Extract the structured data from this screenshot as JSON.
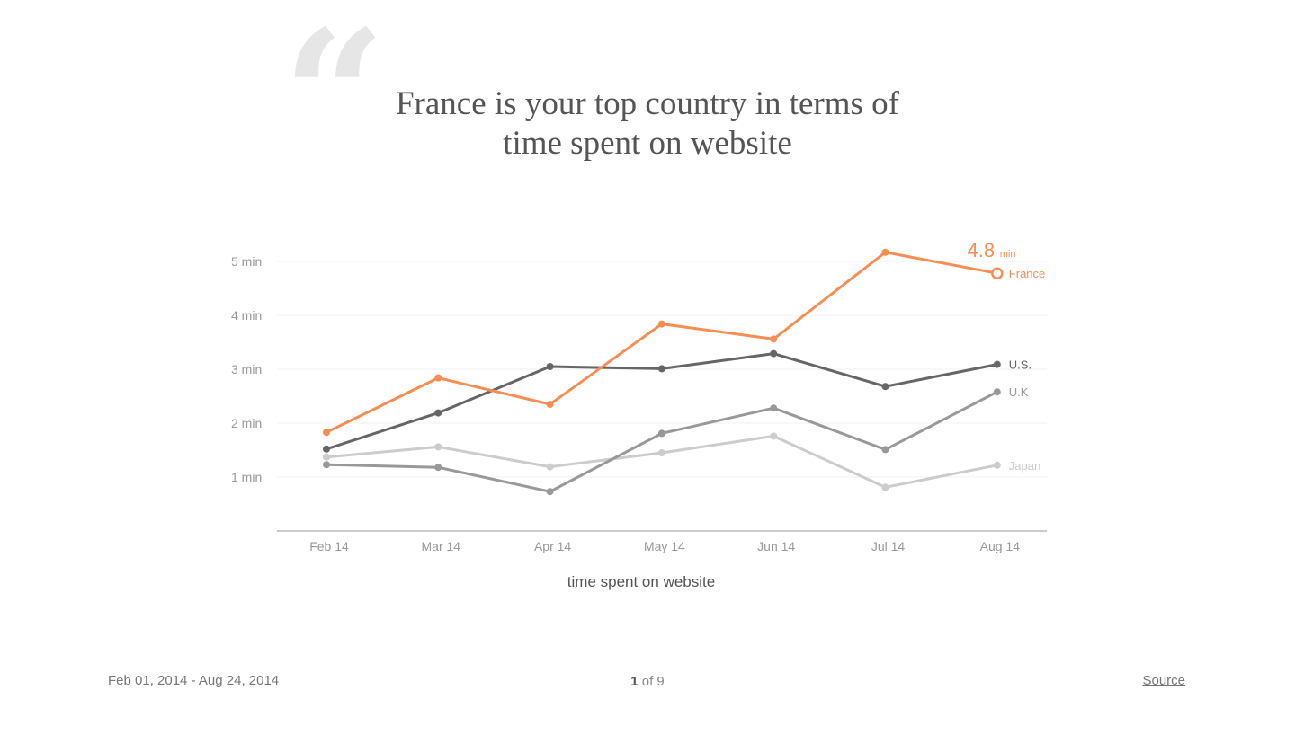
{
  "headline": {
    "line1": "France is your top country in terms of",
    "line2": "time spent on website"
  },
  "icons": {
    "quote": "quote-mark-icon"
  },
  "chart_data": {
    "type": "line",
    "categories": [
      "Feb 14",
      "Mar 14",
      "Apr 14",
      "May 14",
      "Jun 14",
      "Jul 14",
      "Aug 14"
    ],
    "xlabel": "time spent on website",
    "ylabel": "",
    "ylim": [
      0,
      5.5
    ],
    "yticks": [
      {
        "value": 1,
        "label": "1 min"
      },
      {
        "value": 2,
        "label": "2 min"
      },
      {
        "value": 3,
        "label": "3 min"
      },
      {
        "value": 4,
        "label": "4 min"
      },
      {
        "value": 5,
        "label": "5 min"
      }
    ],
    "grid": true,
    "series": [
      {
        "name": "Japan",
        "color": "#cccccc",
        "values": [
          1.37,
          1.56,
          1.19,
          1.45,
          1.76,
          0.81,
          1.22
        ]
      },
      {
        "name": "U.K",
        "color": "#999999",
        "values": [
          1.23,
          1.18,
          0.73,
          1.81,
          2.28,
          1.51,
          2.58
        ]
      },
      {
        "name": "U.S.",
        "color": "#666666",
        "values": [
          1.52,
          2.19,
          3.05,
          3.01,
          3.29,
          2.68,
          3.09
        ]
      },
      {
        "name": "France",
        "color": "#f78d52",
        "values": [
          1.83,
          2.84,
          2.35,
          3.84,
          3.56,
          5.17,
          4.78
        ]
      }
    ],
    "highlight": {
      "series": "France",
      "value_label": "4.8",
      "unit": "min"
    }
  },
  "footer": {
    "date_range": "Feb 01, 2014 - Aug 24, 2014",
    "page_current": "1",
    "page_of": "of 9",
    "source_label": "Source"
  }
}
